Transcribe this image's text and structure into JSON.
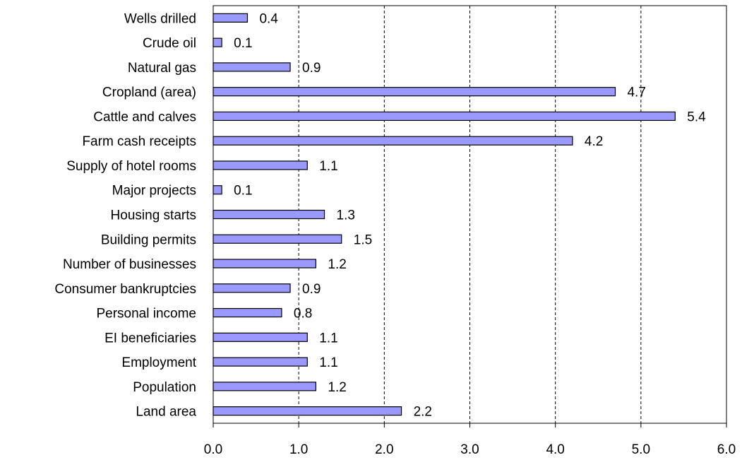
{
  "chart_data": {
    "type": "bar",
    "orientation": "horizontal",
    "title": "",
    "xlabel": "",
    "ylabel": "",
    "categories": [
      "Wells drilled",
      "Crude oil",
      "Natural gas",
      "Cropland (area)",
      "Cattle and calves",
      "Farm cash receipts",
      "Supply of hotel rooms",
      "Major projects",
      "Housing starts",
      "Building permits",
      "Number of businesses",
      "Consumer bankruptcies",
      "Personal income",
      "EI beneficiaries",
      "Employment",
      "Population",
      "Land area"
    ],
    "values": [
      0.4,
      0.1,
      0.9,
      4.7,
      5.4,
      4.2,
      1.1,
      0.1,
      1.3,
      1.5,
      1.2,
      0.9,
      0.8,
      1.1,
      1.1,
      1.2,
      2.2
    ],
    "value_labels": [
      "0.4",
      "0.1",
      "0.9",
      "4.7",
      "5.4",
      "4.2",
      "1.1",
      "0.1",
      "1.3",
      "1.5",
      "1.2",
      "0.9",
      "0.8",
      "1.1",
      "1.1",
      "1.2",
      "2.2"
    ],
    "xlim": [
      0,
      6
    ],
    "xticks": [
      0,
      1,
      2,
      3,
      4,
      5,
      6
    ],
    "xtick_labels": [
      "0.0",
      "1.0",
      "2.0",
      "3.0",
      "4.0",
      "5.0",
      "6.0"
    ],
    "grid": "vertical dashed",
    "legend": "none",
    "colors": {
      "bar_fill": "#9999ff",
      "bar_stroke": "#000000",
      "grid": "#000000",
      "background": "#ffffff"
    }
  }
}
